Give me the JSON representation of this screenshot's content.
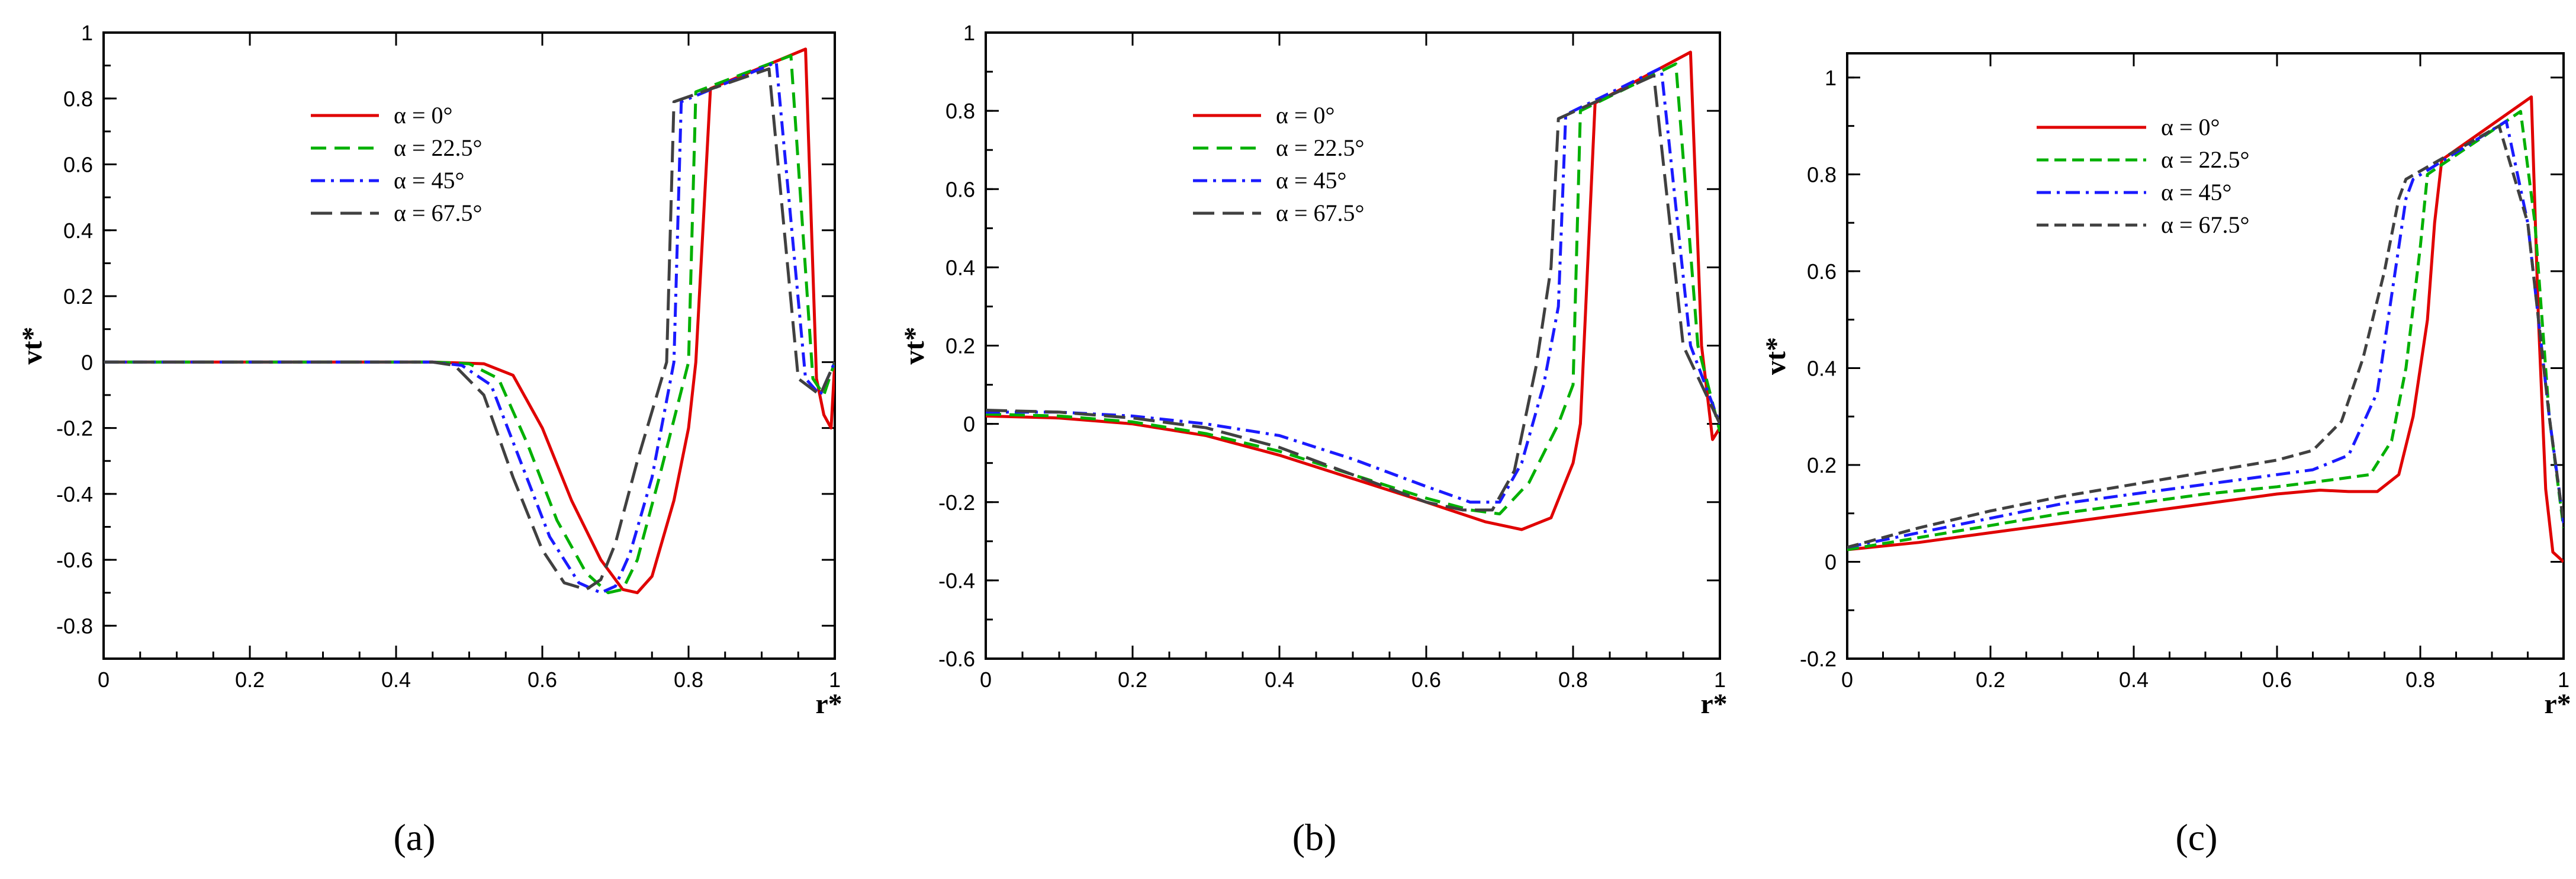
{
  "chart_data": [
    {
      "panel": "a",
      "type": "line",
      "xlabel": "r*",
      "ylabel": "vt*",
      "xlim": [
        0,
        1
      ],
      "ylim": [
        -0.9,
        1.0
      ],
      "xticks": [
        0,
        0.2,
        0.4,
        0.6,
        0.8,
        1
      ],
      "yticks": [
        -0.8,
        -0.6,
        -0.4,
        -0.2,
        0,
        0.2,
        0.4,
        0.6,
        0.8,
        1
      ],
      "xtick_labels": [
        "0",
        "0.2",
        "0.4",
        "0.6",
        "0.8",
        "1"
      ],
      "ytick_labels": [
        "-0.8",
        "-0.6",
        "-0.4",
        "-0.2",
        "0",
        "0.2",
        "0.4",
        "0.6",
        "0.8",
        "1"
      ],
      "legend_position": "top-center",
      "series": [
        {
          "name": "α = 0°",
          "color": "#e00000",
          "dash": "solid",
          "x": [
            0,
            0.45,
            0.52,
            0.56,
            0.6,
            0.64,
            0.68,
            0.71,
            0.73,
            0.75,
            0.78,
            0.8,
            0.81,
            0.83,
            0.96,
            0.975,
            0.985,
            0.995,
            1.0
          ],
          "y": [
            0.0,
            0.0,
            -0.005,
            -0.04,
            -0.2,
            -0.42,
            -0.6,
            -0.69,
            -0.7,
            -0.65,
            -0.42,
            -0.2,
            0.0,
            0.83,
            0.95,
            -0.05,
            -0.16,
            -0.2,
            0.0
          ]
        },
        {
          "name": "α = 22.5°",
          "color": "#00b000",
          "dash": "26,14",
          "x": [
            0,
            0.45,
            0.5,
            0.54,
            0.58,
            0.62,
            0.66,
            0.69,
            0.71,
            0.73,
            0.76,
            0.8,
            0.81,
            0.94,
            0.97,
            0.985,
            1.0
          ],
          "y": [
            0.0,
            0.0,
            -0.005,
            -0.05,
            -0.25,
            -0.48,
            -0.64,
            -0.7,
            -0.69,
            -0.6,
            -0.35,
            0.0,
            0.82,
            0.93,
            -0.05,
            -0.1,
            0.0
          ]
        },
        {
          "name": "α = 45°",
          "color": "#1a1aff",
          "dash": "24,10,5,10",
          "x": [
            0,
            0.45,
            0.49,
            0.53,
            0.57,
            0.61,
            0.65,
            0.68,
            0.7,
            0.72,
            0.75,
            0.78,
            0.79,
            0.92,
            0.96,
            0.98,
            1.0
          ],
          "y": [
            0.0,
            0.0,
            -0.01,
            -0.07,
            -0.3,
            -0.53,
            -0.67,
            -0.7,
            -0.68,
            -0.58,
            -0.35,
            0.0,
            0.79,
            0.91,
            -0.05,
            -0.1,
            0.0
          ]
        },
        {
          "name": "α = 67.5°",
          "color": "#404040",
          "dash": "36,14",
          "x": [
            0,
            0.45,
            0.48,
            0.52,
            0.56,
            0.6,
            0.63,
            0.66,
            0.68,
            0.7,
            0.73,
            0.77,
            0.78,
            0.91,
            0.95,
            0.98,
            1.0
          ],
          "y": [
            0.0,
            0.0,
            -0.01,
            -0.1,
            -0.35,
            -0.57,
            -0.67,
            -0.69,
            -0.66,
            -0.55,
            -0.3,
            0.0,
            0.79,
            0.89,
            -0.05,
            -0.1,
            0.0
          ]
        }
      ]
    },
    {
      "panel": "b",
      "type": "line",
      "xlabel": "r*",
      "ylabel": "vt*",
      "xlim": [
        0,
        1
      ],
      "ylim": [
        -0.6,
        1.0
      ],
      "xticks": [
        0,
        0.2,
        0.4,
        0.6,
        0.8,
        1
      ],
      "yticks": [
        -0.6,
        -0.4,
        -0.2,
        0,
        0.2,
        0.4,
        0.6,
        0.8,
        1
      ],
      "xtick_labels": [
        "0",
        "0.2",
        "0.4",
        "0.6",
        "0.8",
        "1"
      ],
      "ytick_labels": [
        "-0.6",
        "-0.4",
        "-0.2",
        "0",
        "0.2",
        "0.4",
        "0.6",
        "0.8",
        "1"
      ],
      "legend_position": "top-center",
      "series": [
        {
          "name": "α = 0°",
          "color": "#e00000",
          "dash": "solid",
          "x": [
            0,
            0.1,
            0.2,
            0.3,
            0.4,
            0.5,
            0.6,
            0.68,
            0.73,
            0.77,
            0.8,
            0.81,
            0.83,
            0.96,
            0.975,
            0.99,
            1.0
          ],
          "y": [
            0.02,
            0.015,
            0.0,
            -0.03,
            -0.08,
            -0.14,
            -0.2,
            -0.25,
            -0.27,
            -0.24,
            -0.1,
            0.0,
            0.82,
            0.95,
            0.2,
            -0.04,
            -0.01
          ]
        },
        {
          "name": "α = 22.5°",
          "color": "#00b000",
          "dash": "26,14",
          "x": [
            0,
            0.1,
            0.2,
            0.3,
            0.4,
            0.5,
            0.6,
            0.66,
            0.7,
            0.74,
            0.78,
            0.8,
            0.81,
            0.94,
            0.97,
            1.0
          ],
          "y": [
            0.025,
            0.02,
            0.005,
            -0.025,
            -0.07,
            -0.13,
            -0.19,
            -0.22,
            -0.23,
            -0.15,
            0.0,
            0.1,
            0.8,
            0.92,
            0.2,
            -0.02
          ]
        },
        {
          "name": "α = 45°",
          "color": "#1a1aff",
          "dash": "24,10,5,10",
          "x": [
            0,
            0.1,
            0.2,
            0.3,
            0.4,
            0.5,
            0.6,
            0.66,
            0.7,
            0.73,
            0.76,
            0.78,
            0.79,
            0.92,
            0.96,
            1.0
          ],
          "y": [
            0.03,
            0.03,
            0.02,
            0.0,
            -0.03,
            -0.09,
            -0.16,
            -0.2,
            -0.2,
            -0.1,
            0.1,
            0.3,
            0.79,
            0.91,
            0.2,
            0.0
          ]
        },
        {
          "name": "α = 67.5°",
          "color": "#404040",
          "dash": "36,14",
          "x": [
            0,
            0.1,
            0.2,
            0.3,
            0.4,
            0.5,
            0.6,
            0.65,
            0.69,
            0.72,
            0.75,
            0.77,
            0.78,
            0.91,
            0.95,
            1.0
          ],
          "y": [
            0.035,
            0.03,
            0.015,
            -0.01,
            -0.06,
            -0.13,
            -0.2,
            -0.22,
            -0.22,
            -0.12,
            0.15,
            0.4,
            0.78,
            0.89,
            0.2,
            0.0
          ]
        }
      ]
    },
    {
      "panel": "c",
      "type": "line",
      "xlabel": "r*",
      "ylabel": "vt*",
      "xlim": [
        0,
        1
      ],
      "ylim": [
        -0.2,
        1.05
      ],
      "xticks": [
        0,
        0.2,
        0.4,
        0.6,
        0.8,
        1
      ],
      "yticks": [
        -0.2,
        0,
        0.2,
        0.4,
        0.6,
        0.8,
        1
      ],
      "xtick_labels": [
        "0",
        "0.2",
        "0.4",
        "0.6",
        "0.8",
        "1"
      ],
      "ytick_labels": [
        "-0.2",
        "0",
        "0.2",
        "0.4",
        "0.6",
        "0.8",
        "1"
      ],
      "legend_position": "top-left",
      "series": [
        {
          "name": "α = 0°",
          "color": "#e00000",
          "dash": "solid",
          "x": [
            0,
            0.1,
            0.2,
            0.3,
            0.4,
            0.5,
            0.6,
            0.66,
            0.7,
            0.74,
            0.77,
            0.79,
            0.81,
            0.82,
            0.83,
            0.955,
            0.965,
            0.975,
            0.985,
            1.0
          ],
          "y": [
            0.025,
            0.04,
            0.06,
            0.08,
            0.1,
            0.12,
            0.14,
            0.148,
            0.145,
            0.145,
            0.18,
            0.3,
            0.5,
            0.7,
            0.83,
            0.96,
            0.5,
            0.15,
            0.02,
            0.0
          ]
        },
        {
          "name": "α = 22.5°",
          "color": "#00b000",
          "dash": "20,10",
          "x": [
            0,
            0.1,
            0.2,
            0.3,
            0.4,
            0.5,
            0.6,
            0.68,
            0.73,
            0.76,
            0.78,
            0.8,
            0.81,
            0.94,
            0.96,
            0.98,
            1.0
          ],
          "y": [
            0.025,
            0.05,
            0.075,
            0.1,
            0.12,
            0.14,
            0.155,
            0.17,
            0.18,
            0.25,
            0.4,
            0.65,
            0.8,
            0.93,
            0.7,
            0.3,
            0.07
          ]
        },
        {
          "name": "α = 45°",
          "color": "#1a1aff",
          "dash": "24,10,5,10",
          "x": [
            0,
            0.1,
            0.2,
            0.3,
            0.4,
            0.5,
            0.6,
            0.65,
            0.7,
            0.74,
            0.76,
            0.78,
            0.79,
            0.92,
            0.95,
            0.98,
            1.0
          ],
          "y": [
            0.03,
            0.06,
            0.09,
            0.12,
            0.14,
            0.16,
            0.18,
            0.19,
            0.22,
            0.35,
            0.55,
            0.75,
            0.79,
            0.91,
            0.7,
            0.3,
            0.08
          ]
        },
        {
          "name": "α = 67.5°",
          "color": "#404040",
          "dash": "20,10",
          "x": [
            0,
            0.1,
            0.2,
            0.3,
            0.4,
            0.5,
            0.6,
            0.65,
            0.69,
            0.72,
            0.75,
            0.77,
            0.78,
            0.91,
            0.95,
            0.98,
            1.0
          ],
          "y": [
            0.03,
            0.07,
            0.105,
            0.135,
            0.16,
            0.185,
            0.21,
            0.23,
            0.29,
            0.42,
            0.6,
            0.75,
            0.79,
            0.9,
            0.7,
            0.3,
            0.08
          ]
        }
      ]
    }
  ],
  "panel_labels": [
    "(a)",
    "(b)",
    "(c)"
  ]
}
